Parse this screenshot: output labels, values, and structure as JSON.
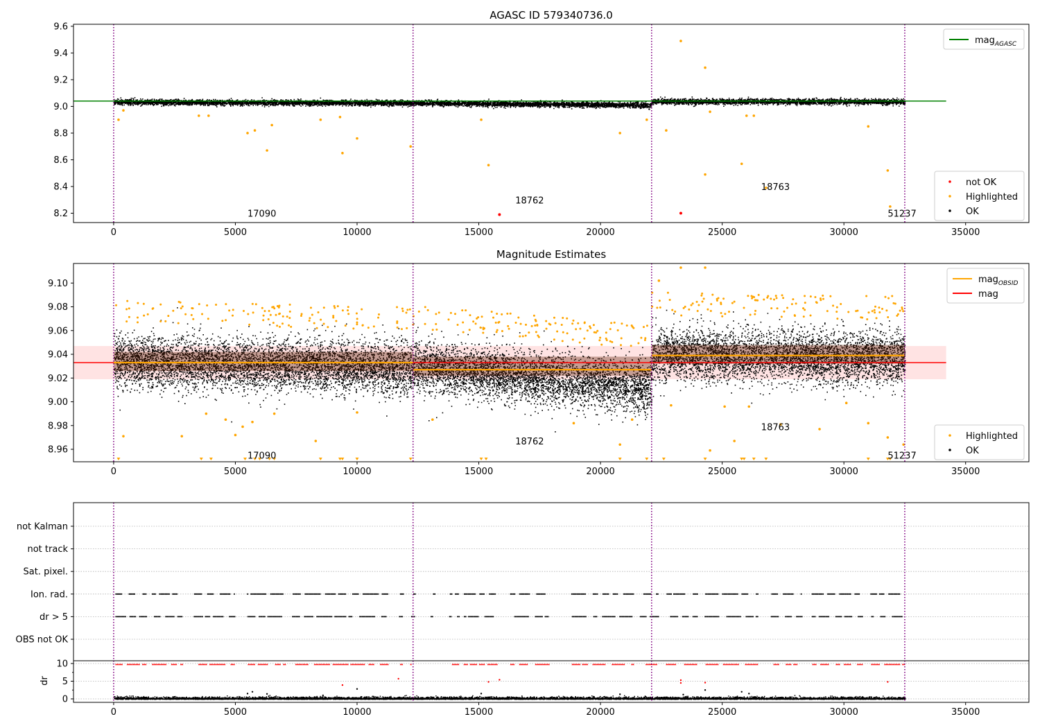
{
  "figure": {
    "background": "#ffffff"
  },
  "colors": {
    "ok": "#000000",
    "highlighted": "#ffa500",
    "not_ok": "#ff0000",
    "obs_line": "#800080",
    "agasc_line": "#008000",
    "mag_obsid_line": "#ffa500",
    "mag_line": "#ff0000",
    "band_fill": "#ffb0b0",
    "grid": "#b0b0b0"
  },
  "chart_data": [
    {
      "id": "top",
      "type": "scatter",
      "title": "AGASC ID 579340736.0",
      "xlim": [
        -1650,
        37600
      ],
      "ylim": [
        8.13,
        9.615
      ],
      "xticks": [
        0,
        5000,
        10000,
        15000,
        20000,
        25000,
        30000,
        35000
      ],
      "yticks": [
        8.2,
        8.4,
        8.6,
        8.8,
        9.0,
        9.2,
        9.4,
        9.6
      ],
      "ytick_labels": [
        "8.2",
        "8.4",
        "8.6",
        "8.8",
        "9.0",
        "9.2",
        "9.4",
        "9.6"
      ],
      "obs_boundaries": [
        0,
        12300,
        22100,
        32500
      ],
      "obs_labels": [
        {
          "text": "17090",
          "x": 5500,
          "y": 8.2
        },
        {
          "text": "18762",
          "x": 16500,
          "y": 8.3
        },
        {
          "text": "18763",
          "x": 26600,
          "y": 8.4
        },
        {
          "text": "51237",
          "x": 31800,
          "y": 8.2
        }
      ],
      "hlines": [
        {
          "name": "mag",
          "sub": "AGASC",
          "y": 9.04,
          "x_range": [
            -1650,
            34200
          ],
          "color": "#008000"
        }
      ],
      "ok_segments": [
        {
          "x": [
            0,
            12300
          ],
          "y": [
            9.035,
            9.028
          ],
          "noise": 0.01
        },
        {
          "x": [
            12300,
            22100
          ],
          "y": [
            9.028,
            9.012
          ],
          "noise": 0.01
        },
        {
          "x": [
            22100,
            32500
          ],
          "y": [
            9.04,
            9.038
          ],
          "noise": 0.01
        }
      ],
      "highlighted": [
        [
          200,
          8.9
        ],
        [
          400,
          8.97
        ],
        [
          3500,
          8.93
        ],
        [
          3900,
          8.93
        ],
        [
          5500,
          8.8
        ],
        [
          5800,
          8.82
        ],
        [
          6300,
          8.67
        ],
        [
          6500,
          8.86
        ],
        [
          8500,
          8.9
        ],
        [
          9300,
          8.92
        ],
        [
          9400,
          8.65
        ],
        [
          10000,
          8.76
        ],
        [
          12200,
          8.7
        ],
        [
          15100,
          8.9
        ],
        [
          15400,
          8.56
        ],
        [
          20800,
          8.8
        ],
        [
          21900,
          8.9
        ],
        [
          22700,
          8.82
        ],
        [
          23300,
          9.49
        ],
        [
          24300,
          9.29
        ],
        [
          24300,
          8.49
        ],
        [
          24500,
          8.96
        ],
        [
          25800,
          8.57
        ],
        [
          26000,
          8.93
        ],
        [
          26300,
          8.93
        ],
        [
          26800,
          8.39
        ],
        [
          31000,
          8.85
        ],
        [
          31800,
          8.52
        ],
        [
          31900,
          8.25
        ]
      ],
      "not_ok": [
        [
          15850,
          8.19
        ],
        [
          23300,
          8.2
        ]
      ],
      "legend_upper": [
        {
          "label": "mag",
          "sub": "AGASC",
          "kind": "line",
          "color": "#008000"
        }
      ],
      "legend_lower": [
        {
          "label": "not OK",
          "kind": "dot",
          "color": "#ff0000"
        },
        {
          "label": "Highlighted",
          "kind": "dot",
          "color": "#ffa500"
        },
        {
          "label": "OK",
          "kind": "dot",
          "color": "#000000"
        }
      ]
    },
    {
      "id": "mid",
      "type": "scatter",
      "title": "Magnitude Estimates",
      "xlim": [
        -1650,
        37600
      ],
      "ylim": [
        8.9495,
        9.1165
      ],
      "xticks": [
        0,
        5000,
        10000,
        15000,
        20000,
        25000,
        30000,
        35000
      ],
      "yticks": [
        8.96,
        8.98,
        9.0,
        9.02,
        9.04,
        9.06,
        9.08,
        9.1
      ],
      "ytick_labels": [
        "8.96",
        "8.98",
        "9.00",
        "9.02",
        "9.04",
        "9.06",
        "9.08",
        "9.10"
      ],
      "obs_boundaries": [
        0,
        12300,
        22100,
        32500
      ],
      "obs_labels": [
        {
          "text": "17090",
          "x": 5500,
          "y": 8.955
        },
        {
          "text": "18762",
          "x": 16500,
          "y": 8.967
        },
        {
          "text": "18763",
          "x": 26600,
          "y": 8.979
        },
        {
          "text": "51237",
          "x": 31800,
          "y": 8.955
        }
      ],
      "band": {
        "y": [
          9.019,
          9.047
        ],
        "x_range": [
          -1650,
          34200
        ]
      },
      "hlines": [
        {
          "name": "mag",
          "sub": "",
          "y": 9.033,
          "x_range": [
            -1650,
            34200
          ],
          "color": "#ff0000"
        }
      ],
      "obsid_mags": [
        {
          "x": [
            0,
            12300
          ],
          "y": 9.033
        },
        {
          "x": [
            12300,
            22100
          ],
          "y": 9.027
        },
        {
          "x": [
            22100,
            32500
          ],
          "y": 9.039
        }
      ],
      "ok_segments": [
        {
          "x": [
            0,
            12300
          ],
          "y": [
            9.034,
            9.028
          ],
          "noise": 0.011
        },
        {
          "x": [
            12300,
            22100
          ],
          "y": [
            9.03,
            9.012
          ],
          "noise": 0.011
        },
        {
          "x": [
            22100,
            32500
          ],
          "y": [
            9.04,
            9.037
          ],
          "noise": 0.011
        }
      ],
      "highlighted": [
        [
          400,
          8.971
        ],
        [
          2800,
          8.971
        ],
        [
          3800,
          8.99
        ],
        [
          4600,
          8.985
        ],
        [
          5000,
          8.972
        ],
        [
          5300,
          8.979
        ],
        [
          5700,
          8.983
        ],
        [
          6600,
          8.99
        ],
        [
          8300,
          8.967
        ],
        [
          10000,
          8.991
        ],
        [
          13100,
          8.985
        ],
        [
          18900,
          8.982
        ],
        [
          20800,
          8.964
        ],
        [
          21300,
          8.985
        ],
        [
          22900,
          8.997
        ],
        [
          24500,
          8.959
        ],
        [
          25100,
          8.996
        ],
        [
          25500,
          8.967
        ],
        [
          26100,
          8.996
        ],
        [
          27400,
          8.981
        ],
        [
          29000,
          8.977
        ],
        [
          30100,
          8.999
        ],
        [
          31000,
          8.982
        ],
        [
          31800,
          8.97
        ],
        [
          32450,
          8.964
        ],
        [
          23300,
          9.113
        ],
        [
          24300,
          9.113
        ],
        [
          22400,
          9.102
        ]
      ],
      "markers_bottom": [
        200,
        3600,
        4000,
        5400,
        5800,
        6000,
        6400,
        6600,
        8500,
        9300,
        9400,
        10000,
        12200,
        15100,
        15300,
        20800,
        21900,
        22600,
        24300,
        25800,
        25900,
        26300,
        26800,
        31000,
        31800,
        31900
      ],
      "legend_upper": [
        {
          "label": "mag",
          "sub": "OBSID",
          "kind": "line",
          "color": "#ffa500"
        },
        {
          "label": "mag",
          "sub": "",
          "kind": "line",
          "color": "#ff0000"
        }
      ],
      "legend_lower": [
        {
          "label": "Highlighted",
          "kind": "dot",
          "color": "#ffa500"
        },
        {
          "label": "OK",
          "kind": "dot",
          "color": "#000000"
        }
      ]
    },
    {
      "id": "flags",
      "type": "scatter",
      "title": "",
      "xlim": [
        -1650,
        37600
      ],
      "categories": [
        "not Kalman",
        "not track",
        "Sat. pixel.",
        "Ion. rad.",
        "dr > 5",
        "OBS not OK"
      ],
      "obs_boundaries": [
        0,
        12300,
        22100,
        32500
      ],
      "flag_rows": [
        "Ion. rad.",
        "dr > 5"
      ],
      "flag_gaps": [
        [
          1350,
          1550
        ],
        [
          2850,
          3300
        ],
        [
          5000,
          5500
        ],
        [
          7050,
          7350
        ],
        [
          11300,
          11650
        ],
        [
          11900,
          12200
        ],
        [
          12400,
          13000
        ],
        [
          13200,
          13800
        ],
        [
          14200,
          14400
        ],
        [
          15800,
          16300
        ],
        [
          17900,
          18800
        ],
        [
          21400,
          21600
        ],
        [
          22400,
          22700
        ],
        [
          24000,
          24300
        ],
        [
          26500,
          27000
        ],
        [
          28300,
          28700
        ],
        [
          30800,
          31100
        ]
      ]
    },
    {
      "id": "dr",
      "type": "scatter",
      "ylabel": "dr",
      "xlim": [
        -1650,
        37600
      ],
      "xticks": [
        0,
        5000,
        10000,
        15000,
        20000,
        25000,
        30000,
        35000
      ],
      "yticks": [
        0,
        5,
        10
      ],
      "ytick_labels": [
        "0",
        "5",
        "10"
      ],
      "ylim": [
        -0.5,
        10.5
      ],
      "obs_boundaries": [
        0,
        12300,
        22100,
        32500
      ],
      "outliers": [
        [
          5500,
          1.5
        ],
        [
          5700,
          2.0
        ],
        [
          6300,
          1.4
        ],
        [
          8600,
          1.0
        ],
        [
          10000,
          2.8
        ],
        [
          15100,
          1.5
        ],
        [
          20800,
          1.3
        ],
        [
          23400,
          1.2
        ],
        [
          24300,
          2.5
        ],
        [
          25800,
          2.0
        ],
        [
          26100,
          1.5
        ]
      ],
      "red_points": [
        [
          9400,
          3.9
        ],
        [
          11700,
          5.7
        ],
        [
          15400,
          4.8
        ],
        [
          15850,
          5.4
        ],
        [
          23300,
          5.3
        ],
        [
          23300,
          4.5
        ],
        [
          24300,
          4.6
        ],
        [
          31800,
          4.8
        ]
      ]
    }
  ]
}
